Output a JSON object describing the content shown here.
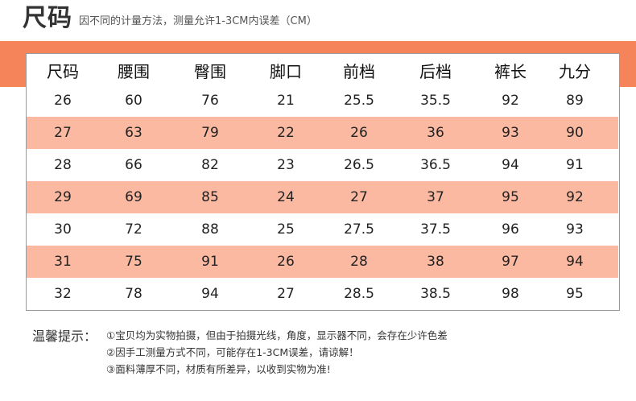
{
  "header": {
    "title": "尺码",
    "subtitle": "因不同的计量方法，测量允许1-3CM内误差（CM）"
  },
  "table": {
    "columns": [
      "尺码",
      "腰围",
      "臀围",
      "脚口",
      "前档",
      "后档",
      "裤长",
      "九分"
    ],
    "rows": [
      [
        "26",
        "60",
        "76",
        "21",
        "25.5",
        "35.5",
        "92",
        "89"
      ],
      [
        "27",
        "63",
        "79",
        "22",
        "26",
        "36",
        "93",
        "90"
      ],
      [
        "28",
        "66",
        "82",
        "23",
        "26.5",
        "36.5",
        "94",
        "91"
      ],
      [
        "29",
        "69",
        "85",
        "24",
        "27",
        "37",
        "95",
        "92"
      ],
      [
        "30",
        "72",
        "88",
        "25",
        "27.5",
        "37.5",
        "96",
        "93"
      ],
      [
        "31",
        "75",
        "91",
        "26",
        "28",
        "38",
        "97",
        "94"
      ],
      [
        "32",
        "78",
        "94",
        "27",
        "28.5",
        "38.5",
        "98",
        "95"
      ]
    ]
  },
  "notes": {
    "label": "温馨提示：",
    "lines": [
      "①宝贝均为实物拍摄，但由于拍摄光线，角度，显示器不同，会存在少许色差",
      "②因手工测量方式不同，可能存在1-3CM误差，请谅解！",
      "③面料薄厚不同，材质有所差异，以收到实物为准!"
    ]
  },
  "colors": {
    "band": "#f5845b",
    "shaded_row": "#fbb9a2",
    "border": "#9a9a9a"
  }
}
